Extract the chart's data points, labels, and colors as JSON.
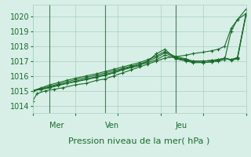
{
  "bg_color": "#d8efe8",
  "grid_color": "#a8cfc0",
  "line_color": "#1a6b2a",
  "marker_color": "#1a6b2a",
  "xlabel": "Pression niveau de la mer( hPa )",
  "xlabel_fontsize": 8,
  "tick_label_fontsize": 7,
  "day_label_fontsize": 7,
  "ylim": [
    1013.5,
    1020.8
  ],
  "yticks": [
    1014,
    1015,
    1016,
    1017,
    1018,
    1019,
    1020
  ],
  "day_labels": [
    "Mer",
    "Ven",
    "Jeu"
  ],
  "day_positions": [
    0.08,
    0.34,
    0.67
  ],
  "series": [
    [
      0.0,
      1014.3,
      0.02,
      1014.8,
      0.06,
      1015.0,
      0.1,
      1015.1,
      0.14,
      1015.2,
      0.2,
      1015.4,
      0.25,
      1015.5,
      0.3,
      1015.7,
      0.34,
      1015.8,
      0.38,
      1016.0,
      0.42,
      1016.2,
      0.46,
      1016.4,
      0.5,
      1016.6,
      0.54,
      1016.8,
      0.58,
      1017.0,
      0.62,
      1017.2,
      0.67,
      1017.3,
      0.72,
      1017.4,
      0.75,
      1017.5,
      0.8,
      1017.6,
      0.84,
      1017.7,
      0.87,
      1017.8,
      0.9,
      1018.0,
      0.93,
      1019.2,
      0.96,
      1019.8,
      1.0,
      1020.5
    ],
    [
      0.0,
      1015.0,
      0.04,
      1015.1,
      0.08,
      1015.2,
      0.12,
      1015.35,
      0.16,
      1015.5,
      0.2,
      1015.6,
      0.25,
      1015.75,
      0.3,
      1015.9,
      0.34,
      1016.05,
      0.38,
      1016.2,
      0.42,
      1016.4,
      0.46,
      1016.55,
      0.5,
      1016.7,
      0.54,
      1017.0,
      0.58,
      1017.5,
      0.62,
      1017.8,
      0.67,
      1017.15,
      0.72,
      1017.0,
      0.75,
      1016.9,
      0.8,
      1016.9,
      0.84,
      1016.95,
      0.87,
      1017.0,
      0.9,
      1017.1,
      0.93,
      1019.0,
      0.96,
      1019.8,
      1.0,
      1020.2
    ],
    [
      0.0,
      1015.0,
      0.04,
      1015.1,
      0.08,
      1015.25,
      0.12,
      1015.4,
      0.16,
      1015.5,
      0.2,
      1015.65,
      0.25,
      1015.8,
      0.3,
      1015.95,
      0.34,
      1016.1,
      0.38,
      1016.25,
      0.42,
      1016.45,
      0.46,
      1016.6,
      0.5,
      1016.75,
      0.54,
      1016.9,
      0.58,
      1017.1,
      0.62,
      1017.4,
      0.67,
      1017.2,
      0.72,
      1017.05,
      0.75,
      1016.95,
      0.8,
      1016.9,
      0.84,
      1016.95,
      0.87,
      1017.05,
      0.9,
      1017.2,
      0.93,
      1017.1,
      0.96,
      1017.2,
      1.0,
      1020.1
    ],
    [
      0.0,
      1015.0,
      0.04,
      1015.15,
      0.08,
      1015.3,
      0.12,
      1015.45,
      0.16,
      1015.6,
      0.2,
      1015.75,
      0.25,
      1015.9,
      0.3,
      1016.05,
      0.34,
      1016.2,
      0.38,
      1016.35,
      0.42,
      1016.5,
      0.46,
      1016.65,
      0.5,
      1016.8,
      0.54,
      1017.0,
      0.58,
      1017.25,
      0.62,
      1017.55,
      0.67,
      1017.25,
      0.72,
      1017.1,
      0.75,
      1017.0,
      0.8,
      1017.0,
      0.84,
      1017.05,
      0.87,
      1017.1,
      0.9,
      1017.2,
      0.93,
      1017.05,
      0.96,
      1017.15,
      1.0,
      1020.15
    ],
    [
      0.0,
      1015.0,
      0.04,
      1015.2,
      0.08,
      1015.4,
      0.12,
      1015.55,
      0.16,
      1015.7,
      0.2,
      1015.85,
      0.25,
      1016.0,
      0.3,
      1016.15,
      0.34,
      1016.3,
      0.38,
      1016.45,
      0.42,
      1016.6,
      0.46,
      1016.75,
      0.5,
      1016.9,
      0.54,
      1017.1,
      0.58,
      1017.35,
      0.62,
      1017.65,
      0.67,
      1017.3,
      0.72,
      1017.15,
      0.75,
      1017.0,
      0.8,
      1017.0,
      0.84,
      1017.05,
      0.87,
      1017.1,
      0.9,
      1017.2,
      0.93,
      1017.1,
      0.96,
      1017.25,
      1.0,
      1020.2
    ]
  ]
}
